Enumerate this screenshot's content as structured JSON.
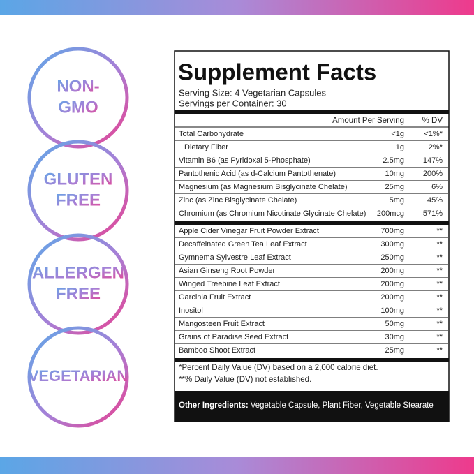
{
  "badges": [
    {
      "lines": [
        "NON-",
        "GMO"
      ]
    },
    {
      "lines": [
        "GLUTEN",
        "FREE"
      ]
    },
    {
      "lines": [
        "ALLERGEN",
        "FREE"
      ]
    },
    {
      "lines": [
        "VEGETARIAN"
      ]
    }
  ],
  "facts": {
    "title": "Supplement Facts",
    "serving_size": "Serving Size: 4 Vegetarian Capsules",
    "servings_per_container": "Servings per Container: 30",
    "header": {
      "amount": "Amount Per Serving",
      "dv": "% DV"
    },
    "sections": [
      [
        {
          "name": "Total Carbohydrate",
          "amount": "<1g",
          "dv": "<1%*"
        },
        {
          "name": "Dietary Fiber",
          "amount": "1g",
          "dv": "2%*"
        },
        {
          "name": "Vitamin B6 (as Pyridoxal 5-Phosphate)",
          "amount": "2.5mg",
          "dv": "147%"
        },
        {
          "name": "Pantothenic Acid (as d-Calcium Pantothenate)",
          "amount": "10mg",
          "dv": "200%"
        },
        {
          "name": "Magnesium (as Magnesium Bisglycinate Chelate)",
          "amount": "25mg",
          "dv": "6%"
        },
        {
          "name": "Zinc (as Zinc Bisglycinate Chelate)",
          "amount": "5mg",
          "dv": "45%"
        },
        {
          "name": "Chromium (as Chromium Nicotinate Glycinate Chelate)",
          "amount": "200mcg",
          "dv": "571%"
        }
      ],
      [
        {
          "name": "Apple Cider Vinegar Fruit Powder Extract",
          "amount": "700mg",
          "dv": "**"
        },
        {
          "name": "Decaffeinated Green Tea Leaf Extract",
          "amount": "300mg",
          "dv": "**"
        },
        {
          "name": "Gymnema Sylvestre Leaf Extract",
          "amount": "250mg",
          "dv": "**"
        },
        {
          "name": "Asian Ginseng Root Powder",
          "amount": "200mg",
          "dv": "**"
        },
        {
          "name": "Winged Treebine Leaf Extract",
          "amount": "200mg",
          "dv": "**"
        },
        {
          "name": "Garcinia Fruit Extract",
          "amount": "200mg",
          "dv": "**"
        },
        {
          "name": "Inositol",
          "amount": "100mg",
          "dv": "**"
        },
        {
          "name": "Mangosteen Fruit Extract",
          "amount": "50mg",
          "dv": "**"
        },
        {
          "name": "Grains of Paradise Seed Extract",
          "amount": "30mg",
          "dv": "**"
        },
        {
          "name": "Bamboo Shoot Extract",
          "amount": "25mg",
          "dv": "**"
        }
      ]
    ],
    "footnotes": [
      "*Percent Daily Value (DV) based on a 2,000 calorie diet.",
      "**% Daily Value (DV) not established."
    ],
    "other_ingredients": {
      "label": "Other Ingredients:",
      "text": "Vegetable Capsule, Plant Fiber, Vegetable Stearate"
    }
  }
}
